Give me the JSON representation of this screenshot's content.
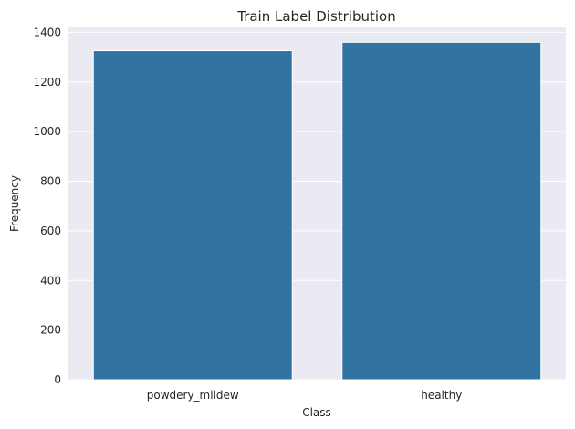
{
  "chart_data": {
    "type": "bar",
    "title": "Train Label Distribution",
    "xlabel": "Class",
    "ylabel": "Frequency",
    "categories": [
      "powdery_mildew",
      "healthy"
    ],
    "values": [
      1326,
      1360
    ],
    "ylim": [
      0,
      1420
    ],
    "yticks": [
      0,
      200,
      400,
      600,
      800,
      1000,
      1200,
      1400
    ],
    "grid": true,
    "legend": "none",
    "colors": {
      "bar": "#3274a1",
      "plot_background": "#eaeaf2",
      "grid": "#ffffff",
      "text": "#262626"
    }
  }
}
